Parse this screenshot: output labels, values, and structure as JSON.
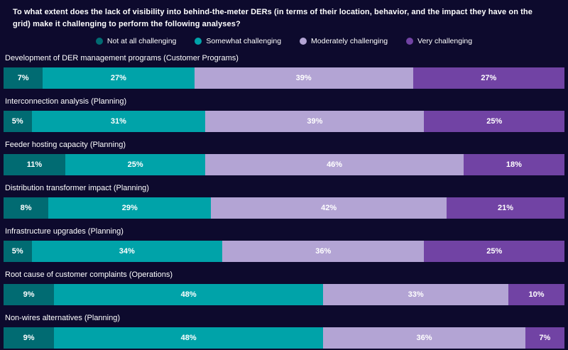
{
  "title": "To what extent does the lack of visibility into behind-the-meter DERs (in terms of their location, behavior, and the impact they have on the grid) make it challenging to perform the following analyses?",
  "colors": {
    "background": "#0d0a2d",
    "text": "#ffffff"
  },
  "chart_data": {
    "type": "bar",
    "stacked": true,
    "orientation": "horizontal",
    "unit": "%",
    "xlim": [
      0,
      100
    ],
    "legend_position": "top",
    "grid": false,
    "categories": [
      "Development of DER management programs (Customer Programs)",
      "Interconnection analysis (Planning)",
      "Feeder hosting capacity (Planning)",
      "Distribution transformer impact (Planning)",
      "Infrastructure upgrades (Planning)",
      "Root cause of customer complaints (Operations)",
      "Non-wires alternatives (Planning)"
    ],
    "series": [
      {
        "name": "Not at all challenging",
        "color": "#016b72",
        "values": [
          7,
          5,
          11,
          8,
          5,
          9,
          9
        ]
      },
      {
        "name": "Somewhat challenging",
        "color": "#00a3a9",
        "values": [
          27,
          31,
          25,
          29,
          34,
          48,
          48
        ]
      },
      {
        "name": "Moderately challenging",
        "color": "#b3a4d4",
        "values": [
          39,
          39,
          46,
          42,
          36,
          33,
          36
        ]
      },
      {
        "name": "Very challenging",
        "color": "#7143a4",
        "values": [
          27,
          25,
          18,
          21,
          25,
          10,
          7
        ]
      }
    ]
  }
}
